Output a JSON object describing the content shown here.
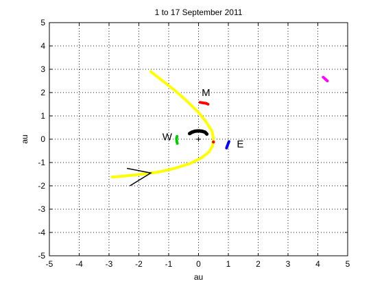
{
  "chart_data": {
    "type": "scatter",
    "title": "1 to 17 September 2011",
    "xlabel": "au",
    "ylabel": "au",
    "xlim": [
      -5,
      5
    ],
    "ylim": [
      -5,
      5
    ],
    "xticks": [
      -5,
      -4,
      -3,
      -2,
      -1,
      0,
      1,
      2,
      3,
      4,
      5
    ],
    "yticks": [
      -5,
      -4,
      -3,
      -2,
      -1,
      0,
      1,
      2,
      3,
      4,
      5
    ],
    "grid": true,
    "series": [
      {
        "key": "comet-tail",
        "color": "#ffff00",
        "x": [
          -1.6,
          -1.2,
          -0.8,
          -0.4,
          0.0,
          0.25,
          0.45,
          0.5,
          0.47,
          0.35,
          0.1,
          -0.3,
          -0.8,
          -1.3,
          -1.9,
          -2.5,
          -2.9
        ],
        "y": [
          2.9,
          2.5,
          2.1,
          1.65,
          1.15,
          0.75,
          0.35,
          0.0,
          -0.3,
          -0.55,
          -0.8,
          -1.05,
          -1.25,
          -1.4,
          -1.5,
          -1.58,
          -1.62
        ]
      },
      {
        "key": "sun-arc",
        "color": "#000000",
        "x": [
          -0.3,
          -0.22,
          -0.12,
          0.0,
          0.12,
          0.22,
          0.28
        ],
        "y": [
          0.24,
          0.3,
          0.34,
          0.36,
          0.34,
          0.3,
          0.22
        ]
      },
      {
        "key": "mercury",
        "color": "#ff0000",
        "x": [
          0.05,
          0.15,
          0.25,
          0.32
        ],
        "y": [
          1.58,
          1.56,
          1.54,
          1.5
        ]
      },
      {
        "key": "venus",
        "color": "#00cc00",
        "x": [
          -0.72,
          -0.74,
          -0.73,
          -0.71
        ],
        "y": [
          0.12,
          0.02,
          -0.08,
          -0.18
        ]
      },
      {
        "key": "earth",
        "color": "#0000ff",
        "x": [
          1.02,
          0.99,
          0.96,
          0.94
        ],
        "y": [
          -0.1,
          -0.2,
          -0.3,
          -0.38
        ]
      },
      {
        "key": "jupiter",
        "color": "#ff00ff",
        "x": [
          4.18,
          4.25,
          4.32
        ],
        "y": [
          2.66,
          2.58,
          2.5
        ]
      }
    ],
    "points": [
      {
        "key": "sun",
        "x": 0.0,
        "y": 0.0,
        "color": "#000000",
        "marker": "+"
      },
      {
        "key": "comet",
        "x": 0.5,
        "y": -0.12,
        "color": "#ff0000",
        "marker": "."
      }
    ],
    "arrow_lines": [
      {
        "x": [
          -2.4,
          -1.6,
          -2.3
        ],
        "y": [
          -1.25,
          -1.45,
          -2.0
        ],
        "color": "#000000"
      }
    ],
    "annotations": [
      {
        "text": "M",
        "x": 0.25,
        "y": 1.85
      },
      {
        "text": "W",
        "x": -1.05,
        "y": -0.05
      },
      {
        "text": "E",
        "x": 1.4,
        "y": -0.35
      }
    ]
  }
}
